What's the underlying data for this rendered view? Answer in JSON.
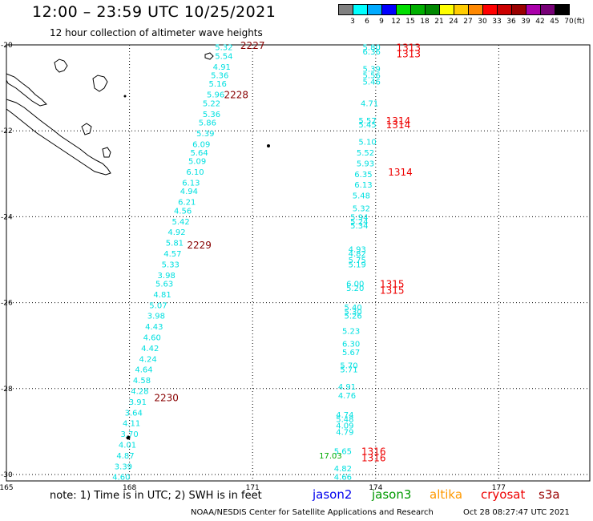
{
  "header": {
    "title": "12:00 – 23:59 UTC 10/25/2021",
    "subtitle": "12 hour collection of altimeter wave heights"
  },
  "legend": {
    "unit": "(ft)",
    "bins": [
      {
        "label": "3",
        "color": "#808080"
      },
      {
        "label": "6",
        "color": "#00ffff"
      },
      {
        "label": "9",
        "color": "#00aaff"
      },
      {
        "label": "12",
        "color": "#0000ff"
      },
      {
        "label": "15",
        "color": "#00dd00"
      },
      {
        "label": "18",
        "color": "#00b000"
      },
      {
        "label": "21",
        "color": "#008800"
      },
      {
        "label": "24",
        "color": "#ffff00"
      },
      {
        "label": "27",
        "color": "#ffcc00"
      },
      {
        "label": "30",
        "color": "#ff8800"
      },
      {
        "label": "33",
        "color": "#ff0000"
      },
      {
        "label": "36",
        "color": "#cc0000"
      },
      {
        "label": "39",
        "color": "#990000"
      },
      {
        "label": "42",
        "color": "#aa00aa"
      },
      {
        "label": "45",
        "color": "#770077"
      },
      {
        "label": "70",
        "color": "#000000"
      }
    ]
  },
  "axes": {
    "lon_ticks": [
      "165",
      "168",
      "171",
      "174",
      "177"
    ],
    "lat_ticks": [
      "-20",
      "-22",
      "-24",
      "-26",
      "-28",
      "-30"
    ]
  },
  "track1": {
    "color": "#00e0e0",
    "points": [
      {
        "lon": 170.3,
        "lat": -20.05,
        "v": "5.32"
      },
      {
        "lon": 170.3,
        "lat": -20.25,
        "v": "5.54"
      },
      {
        "lon": 170.25,
        "lat": -20.5,
        "v": "4.91"
      },
      {
        "lon": 170.2,
        "lat": -20.7,
        "v": "5.36"
      },
      {
        "lon": 170.15,
        "lat": -20.9,
        "v": "5.16"
      },
      {
        "lon": 170.1,
        "lat": -21.15,
        "v": "5.96"
      },
      {
        "lon": 170.0,
        "lat": -21.35,
        "v": "5.22"
      },
      {
        "lon": 170.0,
        "lat": -21.6,
        "v": "5.36"
      },
      {
        "lon": 169.9,
        "lat": -21.8,
        "v": "5.86"
      },
      {
        "lon": 169.85,
        "lat": -22.05,
        "v": "5.39"
      },
      {
        "lon": 169.75,
        "lat": -22.3,
        "v": "6.09"
      },
      {
        "lon": 169.7,
        "lat": -22.5,
        "v": "5.64"
      },
      {
        "lon": 169.65,
        "lat": -22.7,
        "v": "5.09"
      },
      {
        "lon": 169.6,
        "lat": -22.95,
        "v": "6.10"
      },
      {
        "lon": 169.5,
        "lat": -23.2,
        "v": "6.13"
      },
      {
        "lon": 169.45,
        "lat": -23.4,
        "v": "4.94"
      },
      {
        "lon": 169.4,
        "lat": -23.65,
        "v": "6.21"
      },
      {
        "lon": 169.3,
        "lat": -23.85,
        "v": "4.56"
      },
      {
        "lon": 169.25,
        "lat": -24.1,
        "v": "5.42"
      },
      {
        "lon": 169.15,
        "lat": -24.35,
        "v": "4.92"
      },
      {
        "lon": 169.1,
        "lat": -24.6,
        "v": "5.81"
      },
      {
        "lon": 169.05,
        "lat": -24.85,
        "v": "4.57"
      },
      {
        "lon": 169.0,
        "lat": -25.1,
        "v": "5.33"
      },
      {
        "lon": 168.9,
        "lat": -25.35,
        "v": "3.98"
      },
      {
        "lon": 168.85,
        "lat": -25.55,
        "v": "5.63"
      },
      {
        "lon": 168.8,
        "lat": -25.8,
        "v": "4.81"
      },
      {
        "lon": 168.7,
        "lat": -26.05,
        "v": "5.07"
      },
      {
        "lon": 168.65,
        "lat": -26.3,
        "v": "3.98"
      },
      {
        "lon": 168.6,
        "lat": -26.55,
        "v": "4.43"
      },
      {
        "lon": 168.55,
        "lat": -26.8,
        "v": "4.60"
      },
      {
        "lon": 168.5,
        "lat": -27.05,
        "v": "4.42"
      },
      {
        "lon": 168.45,
        "lat": -27.3,
        "v": "4.24"
      },
      {
        "lon": 168.35,
        "lat": -27.55,
        "v": "4.64"
      },
      {
        "lon": 168.3,
        "lat": -27.8,
        "v": "4.58"
      },
      {
        "lon": 168.25,
        "lat": -28.05,
        "v": "4.28"
      },
      {
        "lon": 168.2,
        "lat": -28.3,
        "v": "3.91"
      },
      {
        "lon": 168.1,
        "lat": -28.55,
        "v": "3.64"
      },
      {
        "lon": 168.05,
        "lat": -28.8,
        "v": "4.11"
      },
      {
        "lon": 168.0,
        "lat": -29.05,
        "v": "3.70"
      },
      {
        "lon": 167.95,
        "lat": -29.3,
        "v": "4.01"
      },
      {
        "lon": 167.9,
        "lat": -29.55,
        "v": "4.87"
      },
      {
        "lon": 167.85,
        "lat": -29.8,
        "v": "3.39"
      },
      {
        "lon": 167.8,
        "lat": -30.05,
        "v": "4.60"
      }
    ],
    "time_labels": [
      {
        "lon": 171.0,
        "lat": -20.0,
        "t": "2227"
      },
      {
        "lon": 170.6,
        "lat": -21.15,
        "t": "2228"
      },
      {
        "lon": 169.7,
        "lat": -24.65,
        "t": "2229"
      },
      {
        "lon": 168.9,
        "lat": -28.2,
        "t": "2230"
      }
    ]
  },
  "track2": {
    "color": "#00e0e0",
    "points": [
      {
        "lon": 173.9,
        "lat": -20.05,
        "v": "5.80"
      },
      {
        "lon": 173.9,
        "lat": -20.15,
        "v": "6.36"
      },
      {
        "lon": 173.9,
        "lat": -20.55,
        "v": "5.39"
      },
      {
        "lon": 173.9,
        "lat": -20.7,
        "v": "5.56"
      },
      {
        "lon": 173.9,
        "lat": -20.85,
        "v": "5.46"
      },
      {
        "lon": 173.85,
        "lat": -21.35,
        "v": "4.71"
      },
      {
        "lon": 173.8,
        "lat": -21.75,
        "v": "5.57"
      },
      {
        "lon": 173.8,
        "lat": -21.85,
        "v": "5.45"
      },
      {
        "lon": 173.8,
        "lat": -22.25,
        "v": "5.10"
      },
      {
        "lon": 173.75,
        "lat": -22.5,
        "v": "5.52"
      },
      {
        "lon": 173.75,
        "lat": -22.75,
        "v": "5.93"
      },
      {
        "lon": 173.7,
        "lat": -23.0,
        "v": "6.35"
      },
      {
        "lon": 173.7,
        "lat": -23.25,
        "v": "6.13"
      },
      {
        "lon": 173.65,
        "lat": -23.5,
        "v": "5.48"
      },
      {
        "lon": 173.65,
        "lat": -23.8,
        "v": "5.32"
      },
      {
        "lon": 173.6,
        "lat": -24.0,
        "v": "5.94"
      },
      {
        "lon": 173.6,
        "lat": -24.1,
        "v": "5.24"
      },
      {
        "lon": 173.6,
        "lat": -24.2,
        "v": "5.34"
      },
      {
        "lon": 173.55,
        "lat": -24.75,
        "v": "4.93"
      },
      {
        "lon": 173.55,
        "lat": -24.85,
        "v": "4.82"
      },
      {
        "lon": 173.55,
        "lat": -25.0,
        "v": "5.75"
      },
      {
        "lon": 173.55,
        "lat": -25.1,
        "v": "5.19"
      },
      {
        "lon": 173.5,
        "lat": -25.55,
        "v": "6.00"
      },
      {
        "lon": 173.5,
        "lat": -25.65,
        "v": "5.20"
      },
      {
        "lon": 173.45,
        "lat": -26.1,
        "v": "5.40"
      },
      {
        "lon": 173.45,
        "lat": -26.2,
        "v": "5.30"
      },
      {
        "lon": 173.45,
        "lat": -26.3,
        "v": "5.26"
      },
      {
        "lon": 173.4,
        "lat": -26.65,
        "v": "5.23"
      },
      {
        "lon": 173.4,
        "lat": -26.95,
        "v": "6.30"
      },
      {
        "lon": 173.4,
        "lat": -27.15,
        "v": "5.67"
      },
      {
        "lon": 173.35,
        "lat": -27.45,
        "v": "5.70"
      },
      {
        "lon": 173.35,
        "lat": -27.55,
        "v": "5.71"
      },
      {
        "lon": 173.3,
        "lat": -27.95,
        "v": "4.91"
      },
      {
        "lon": 173.3,
        "lat": -28.15,
        "v": "4.76"
      },
      {
        "lon": 173.25,
        "lat": -28.6,
        "v": "4.74"
      },
      {
        "lon": 173.25,
        "lat": -28.7,
        "v": "5.48"
      },
      {
        "lon": 173.25,
        "lat": -28.85,
        "v": "4.09"
      },
      {
        "lon": 173.25,
        "lat": -29.0,
        "v": "4.79"
      },
      {
        "lon": 173.2,
        "lat": -29.45,
        "v": "5.65"
      },
      {
        "lon": 173.2,
        "lat": -29.85,
        "v": "4.82"
      },
      {
        "lon": 173.2,
        "lat": -30.05,
        "v": "4.66"
      }
    ],
    "green_point": {
      "lon": 172.9,
      "lat": -29.55,
      "v": "17.03"
    },
    "time_labels": [
      {
        "lon": 174.8,
        "lat": -20.05,
        "t": "1313"
      },
      {
        "lon": 174.8,
        "lat": -20.2,
        "t": "1313"
      },
      {
        "lon": 174.55,
        "lat": -21.75,
        "t": "1314"
      },
      {
        "lon": 174.55,
        "lat": -21.85,
        "t": "1314"
      },
      {
        "lon": 174.6,
        "lat": -22.95,
        "t": "1314"
      },
      {
        "lon": 174.4,
        "lat": -25.55,
        "t": "1315"
      },
      {
        "lon": 174.4,
        "lat": -25.7,
        "t": "1315"
      },
      {
        "lon": 173.95,
        "lat": -29.45,
        "t": "1316"
      },
      {
        "lon": 173.95,
        "lat": -29.6,
        "t": "1316"
      }
    ]
  },
  "satellites": [
    {
      "name": "jason2",
      "color": "#0000ee"
    },
    {
      "name": "jason3",
      "color": "#009900"
    },
    {
      "name": "altika",
      "color": "#ff9900"
    },
    {
      "name": "cryosat",
      "color": "#ee0000"
    },
    {
      "name": "s3a",
      "color": "#990000"
    }
  ],
  "footer": {
    "note": "note:  1) Time is in UTC;  2) SWH is in feet",
    "credit": "NOAA/NESDIS Center for Satellite Applications and Research",
    "timestamp": "Oct 28 08:27:47 UTC 2021"
  }
}
